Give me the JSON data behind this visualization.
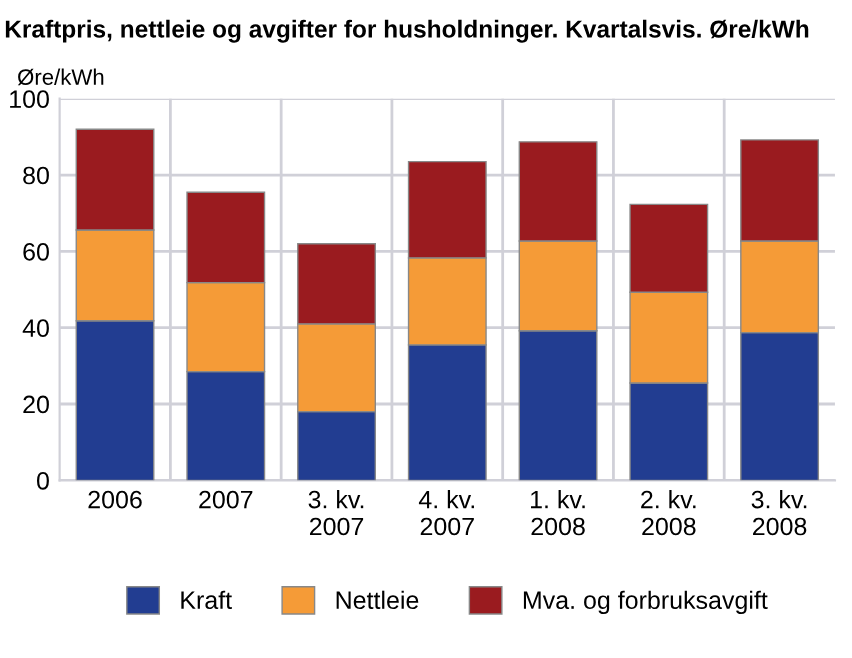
{
  "chart_data": {
    "type": "bar",
    "title": "Kraftpris, nettleie og avgifter for husholdninger. Kvartalsvis. Øre/kWh",
    "ylabel": "Øre/kWh",
    "categories": [
      "2006",
      "2007",
      "3. kv.\n2007",
      "4. kv.\n2007",
      "1. kv.\n2008",
      "2. kv.\n2008",
      "3. kv.\n2008"
    ],
    "stacked": true,
    "series": [
      {
        "name": "Kraft",
        "color": "#223d91",
        "values": [
          41.8,
          28.5,
          18,
          35.5,
          39.2,
          25.5,
          38.7
        ]
      },
      {
        "name": "Nettleie",
        "color": "#f59b37",
        "values": [
          23.8,
          23.3,
          23,
          22.8,
          23.5,
          23.8,
          24
        ]
      },
      {
        "name": "Mva. og forbruksavgift",
        "color": "#9a1b1f",
        "values": [
          26.4,
          23.7,
          21,
          25.2,
          26,
          23,
          26.5
        ]
      }
    ],
    "ylim": [
      0,
      100
    ],
    "yticks": [
      0,
      20,
      40,
      60,
      80,
      100
    ],
    "grid": true,
    "legend": "bottom"
  }
}
